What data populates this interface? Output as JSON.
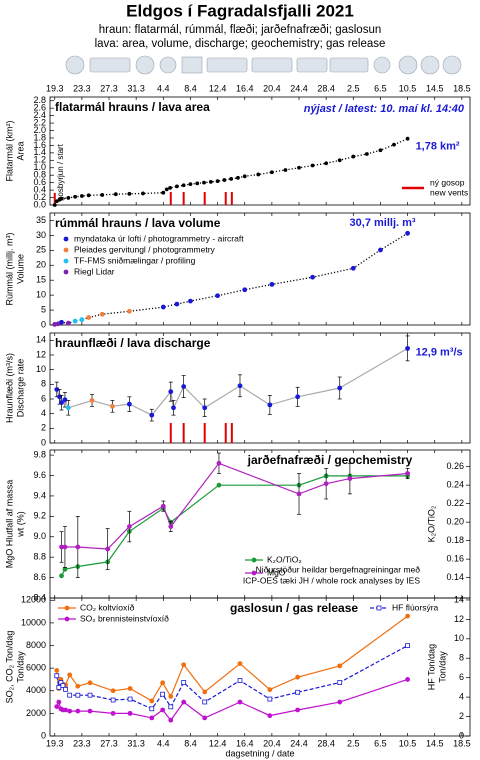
{
  "header": {
    "title": "Eldgos í Fagradalsfjalli 2021",
    "subtitle": [
      "hraun: flatarmál, rúmmál, flæði; jarðefnafræði; gaslosun",
      "lava: area, volume, discharge; geochemistry; gas release"
    ]
  },
  "chart_data": [
    {
      "type": "line",
      "title": "flatarmál hrauns / lava area",
      "note": "nýjast / latest: 10. maí kl. 14:40",
      "ylabel": [
        "Flatarmál (km²)",
        "Area"
      ],
      "xlim": [
        -0.7,
        61.2
      ],
      "xticks": [
        {
          "value": 0,
          "label": "19.3"
        },
        {
          "value": 4,
          "label": "23.3"
        },
        {
          "value": 8,
          "label": "27.3"
        },
        {
          "value": 12,
          "label": "31.3"
        },
        {
          "value": 16,
          "label": "4.4"
        },
        {
          "value": 20,
          "label": "8.4"
        },
        {
          "value": 24,
          "label": "12.4"
        },
        {
          "value": 28,
          "label": "16.4"
        },
        {
          "value": 32,
          "label": "20.4"
        },
        {
          "value": 36,
          "label": "24.4"
        },
        {
          "value": 40,
          "label": "28.4"
        },
        {
          "value": 44,
          "label": "2.5"
        },
        {
          "value": 48,
          "label": "6.5"
        },
        {
          "value": 52,
          "label": "10.5"
        },
        {
          "value": 56,
          "label": "14.5"
        },
        {
          "value": 60,
          "label": "18.5"
        }
      ],
      "ylim": [
        0,
        2.9
      ],
      "yticks": [
        {
          "value": 0,
          "label": "0.0"
        },
        0.2,
        0.4,
        0.6,
        0.8,
        {
          "value": 1,
          "label": "1.0"
        },
        1.2,
        1.4,
        1.6,
        1.8,
        {
          "value": 2,
          "label": "2.0"
        },
        2.2,
        2.4,
        2.6,
        2.8
      ],
      "series": [
        {
          "color": "#000000",
          "line_style": "dotted",
          "marker": "circle",
          "x": [
            0,
            0.3,
            0.7,
            1,
            2,
            3,
            4,
            5,
            7,
            9,
            11,
            13,
            16,
            16.5,
            17,
            18,
            19,
            20,
            21,
            22,
            23,
            24,
            25,
            26,
            27,
            28,
            30,
            32,
            34,
            36,
            38,
            40,
            42,
            44,
            46,
            48,
            50,
            52
          ],
          "values": [
            0,
            0.1,
            0.14,
            0.17,
            0.19,
            0.22,
            0.24,
            0.26,
            0.27,
            0.29,
            0.3,
            0.31,
            0.33,
            0.42,
            0.46,
            0.5,
            0.53,
            0.56,
            0.58,
            0.6,
            0.62,
            0.64,
            0.67,
            0.7,
            0.73,
            0.77,
            0.82,
            0.88,
            0.94,
            1.0,
            1.06,
            1.12,
            1.2,
            1.3,
            1.37,
            1.47,
            1.62,
            1.78
          ],
          "value_labels": [
            null,
            null,
            null,
            null,
            null,
            null,
            null,
            null,
            null,
            null,
            null,
            null,
            null,
            null,
            null,
            null,
            null,
            null,
            null,
            null,
            null,
            null,
            null,
            null,
            null,
            null,
            null,
            null,
            null,
            null,
            null,
            null,
            null,
            null,
            null,
            null,
            null,
            "1,78 km²"
          ]
        }
      ],
      "start": 0,
      "start_label": "gosbyrjun / start",
      "vents": [
        17.1,
        19,
        22.1,
        25.2,
        26.1
      ],
      "vent_color": "#e00000",
      "vent_label": [
        "ný gosop",
        "new vents"
      ]
    },
    {
      "type": "scatter",
      "title": "rúmmál hrauns / lava volume",
      "ylabel": [
        "Rúmmál (millj. m³)",
        "Volume"
      ],
      "xlim": [
        -0.7,
        61.2
      ],
      "ylim": [
        0,
        37.5
      ],
      "yticks": [
        0,
        5,
        10,
        15,
        20,
        25,
        30,
        35
      ],
      "legend_loc": "upper left",
      "legend": [
        {
          "label": "myndataka úr lofti  /  photogrammetry - aircraft",
          "color": "#1a1ad6"
        },
        {
          "label": "Pleiades gervitungl  /  photogrammetry",
          "color": "#f08040"
        },
        {
          "label": "TF-FMS sniðmælingar  /  profiling",
          "color": "#20c0f0"
        },
        {
          "label": "Riegl Lidar",
          "color": "#8020b0"
        }
      ],
      "series": [
        {
          "color": "#000000",
          "line_style": "dotted",
          "marker": "circle",
          "x": [
            0,
            0.5,
            1,
            2,
            3,
            4,
            5,
            7,
            11,
            16,
            18,
            20,
            24,
            28,
            32,
            38,
            44,
            48,
            52
          ],
          "values": [
            0.2,
            0.4,
            0.9,
            0.6,
            1.3,
            1.8,
            2.5,
            3.6,
            4.6,
            6,
            7,
            8,
            9.8,
            11.8,
            13.6,
            16,
            19,
            25.1,
            30.7
          ],
          "point_colors": [
            "#8020b0",
            "#8020b0",
            "#1a1ad6",
            "#8020b0",
            "#20c0f0",
            "#20c0f0",
            "#f08040",
            "#f08040",
            "#f08040",
            "#1a1ad6",
            "#1a1ad6",
            "#1a1ad6",
            "#1a1ad6",
            "#1a1ad6",
            "#1a1ad6",
            "#1a1ad6",
            "#1a1ad6",
            "#1a1ad6",
            "#1a1ad6"
          ],
          "value_labels": [
            null,
            null,
            null,
            null,
            null,
            null,
            null,
            null,
            null,
            null,
            null,
            null,
            null,
            null,
            null,
            null,
            null,
            null,
            "30,7 millj. m³"
          ]
        }
      ]
    },
    {
      "type": "line",
      "title": "hraunflæði / lava discharge",
      "ylabel": [
        "Hraunflæði (m³/s)",
        "Discharge rate"
      ],
      "xlim": [
        -0.7,
        61.2
      ],
      "ylim": [
        0,
        15
      ],
      "yticks": [
        0,
        2,
        4,
        6,
        8,
        10,
        12,
        14
      ],
      "series": [
        {
          "color": "#aaaaaa",
          "line_style": "solid",
          "marker": "circle",
          "x": [
            0.3,
            0.7,
            1,
            1.5,
            2,
            5.5,
            8.5,
            11,
            14.3,
            17.1,
            17.5,
            19,
            22.1,
            27.3,
            31.7,
            35.8,
            42,
            52
          ],
          "values": [
            7.3,
            6.3,
            5.5,
            5.9,
            4.8,
            5.8,
            5,
            5.3,
            3.8,
            7,
            4.8,
            7.7,
            4.8,
            7.8,
            5.2,
            6.3,
            7.5,
            12.9
          ],
          "errors": [
            1,
            1,
            1,
            1,
            1,
            0.8,
            0.8,
            1,
            0.8,
            1.3,
            1,
            1.5,
            1.2,
            1.5,
            1.3,
            1.3,
            1.5,
            1.7
          ],
          "point_colors": [
            "#1a1ad6",
            "#1a1ad6",
            "#1a1ad6",
            "#1a1ad6",
            "#20c0f0",
            "#f08040",
            "#f08040",
            "#1a1ad6",
            "#1a1ad6",
            "#1a1ad6",
            "#1a1ad6",
            "#1a1ad6",
            "#1a1ad6",
            "#1a1ad6",
            "#1a1ad6",
            "#1a1ad6",
            "#1a1ad6",
            "#1a1ad6"
          ],
          "value_labels": [
            null,
            null,
            null,
            null,
            null,
            null,
            null,
            null,
            null,
            null,
            null,
            null,
            null,
            null,
            null,
            null,
            null,
            "12,9 m³/s"
          ]
        }
      ],
      "vents": [
        17.1,
        19,
        22.1,
        25.2,
        26.1
      ],
      "vent_color": "#e00000"
    },
    {
      "type": "line",
      "title": "jarðefnafræði / geochemistry",
      "ylabel": [
        "MgO Hlutfall af massa",
        "wt (%)"
      ],
      "ylabel_color": "#b020c0",
      "y2label": [
        "K₂O/TiO₂"
      ],
      "y2label_color": "#1a9a3a",
      "note": [
        "Niðurstöður heildar bergefnagreiningar með",
        "ICP-OES tæki JH / whole rock analyses by IES"
      ],
      "xlim": [
        -0.7,
        61.2
      ],
      "ylim": [
        8.4,
        9.85
      ],
      "yticks": [
        8.4,
        8.6,
        8.8,
        {
          "value": 9,
          "label": "9.0"
        },
        9.2,
        9.4,
        9.6,
        9.8
      ],
      "y2lim": [
        0.118,
        0.278
      ],
      "y2ticks": [
        0.14,
        0.16,
        0.18,
        {
          "value": 0.2,
          "label": "0.20"
        },
        0.22,
        0.24,
        0.26
      ],
      "legend_loc": "lower center",
      "series": [
        {
          "name": "K₂O/TiO₂",
          "axis": "y2",
          "color": "#1a9a3a",
          "line_style": "solid",
          "marker": "circle",
          "x": [
            1,
            1.5,
            3.4,
            7.8,
            11,
            16,
            17.1,
            24.2,
            36,
            40,
            43.5,
            52
          ],
          "values": [
            0.142,
            0.149,
            0.152,
            0.157,
            0.19,
            0.215,
            0.2,
            0.24,
            0.24,
            0.25,
            0.25,
            0.25
          ]
        },
        {
          "name": "MgO",
          "color": "#b020c0",
          "line_style": "solid",
          "marker": "circle",
          "x": [
            1,
            1.5,
            3.4,
            7.8,
            11,
            16,
            17.1,
            24.2,
            36,
            40,
            43.5,
            52
          ],
          "values": [
            8.9,
            8.9,
            8.9,
            8.88,
            9.1,
            9.3,
            9.1,
            9.72,
            9.42,
            9.52,
            9.57,
            9.62
          ],
          "errors": [
            0.15,
            0.2,
            0.3,
            0.2,
            0.15,
            0.05,
            0.05,
            0.1,
            0.2,
            0.15,
            0.15,
            0.05
          ]
        }
      ]
    },
    {
      "type": "line",
      "title": "gaslosun / gas release",
      "ylabel": [
        "SO₂, CO₂ Ton/dag",
        "Ton/day"
      ],
      "y2label": [
        "HF Ton/dag",
        "Ton/day"
      ],
      "y2label_color": "#1a1ad6",
      "xlabel": "dagsetning / date",
      "xlim": [
        -0.7,
        61.2
      ],
      "xticks": [
        {
          "value": 0,
          "label": "19.3"
        },
        {
          "value": 4,
          "label": "23.3"
        },
        {
          "value": 8,
          "label": "27.3"
        },
        {
          "value": 12,
          "label": "31.3"
        },
        {
          "value": 16,
          "label": "4.4"
        },
        {
          "value": 20,
          "label": "8.4"
        },
        {
          "value": 24,
          "label": "12.4"
        },
        {
          "value": 28,
          "label": "16.4"
        },
        {
          "value": 32,
          "label": "20.4"
        },
        {
          "value": 36,
          "label": "24.4"
        },
        {
          "value": 40,
          "label": "28.4"
        },
        {
          "value": 44,
          "label": "2.5"
        },
        {
          "value": 48,
          "label": "6.5"
        },
        {
          "value": 52,
          "label": "10.5"
        },
        {
          "value": 56,
          "label": "14.5"
        },
        {
          "value": 60,
          "label": "18.5"
        }
      ],
      "ylim": [
        0,
        12200
      ],
      "yticks": [
        0,
        2000,
        4000,
        6000,
        8000,
        10000,
        12000
      ],
      "y2lim": [
        0,
        14.2
      ],
      "y2ticks": [
        0,
        2,
        4,
        6,
        8,
        10,
        12,
        14
      ],
      "legend_loc": "upper left",
      "series": [
        {
          "name": "CO₂ koltvíoxíð",
          "color": "#f07010",
          "line_style": "solid",
          "marker": "circle",
          "x": [
            0.3,
            0.6,
            0.9,
            1.2,
            1.6,
            2.2,
            3.4,
            5.2,
            8.6,
            11.1,
            14.3,
            15.9,
            17.1,
            19,
            22.1,
            27.3,
            31.7,
            35.8,
            42,
            52
          ],
          "values": [
            5800,
            4200,
            5000,
            4600,
            4500,
            5400,
            4400,
            4700,
            4000,
            4200,
            3100,
            4700,
            3500,
            6300,
            3900,
            6400,
            4100,
            5200,
            6200,
            10600
          ]
        },
        {
          "name": "SO₂ brennisteinstvíoxíð",
          "color": "#c010d0",
          "line_style": "solid",
          "marker": "circle",
          "x": [
            0.3,
            0.6,
            0.9,
            1.2,
            1.6,
            2.2,
            3.4,
            5.2,
            8.6,
            11.1,
            14.3,
            15.9,
            17.1,
            19,
            22.1,
            27.3,
            31.7,
            35.8,
            42,
            52
          ],
          "values": [
            2600,
            3000,
            2400,
            2300,
            2300,
            2200,
            2200,
            2200,
            2000,
            2000,
            1600,
            2300,
            1400,
            3000,
            1600,
            3000,
            1800,
            2300,
            3000,
            5000
          ]
        },
        {
          "name": "HF flúorsýra",
          "axis": "y2",
          "color": "#1a1ad6",
          "line_style": "dashed",
          "marker": "square-open",
          "x": [
            0.3,
            0.6,
            0.9,
            1.2,
            1.6,
            2.2,
            3.4,
            5.2,
            8.6,
            11.1,
            14.3,
            15.9,
            17.1,
            19,
            22.1,
            27.3,
            31.7,
            35.8,
            42,
            52
          ],
          "values": [
            6.2,
            5,
            5.5,
            5.2,
            4.8,
            4.2,
            4.2,
            4.2,
            3.7,
            3.8,
            2.8,
            4.3,
            3,
            5.5,
            3.5,
            5.7,
            3.8,
            4.5,
            5.5,
            9.3
          ]
        }
      ]
    }
  ]
}
